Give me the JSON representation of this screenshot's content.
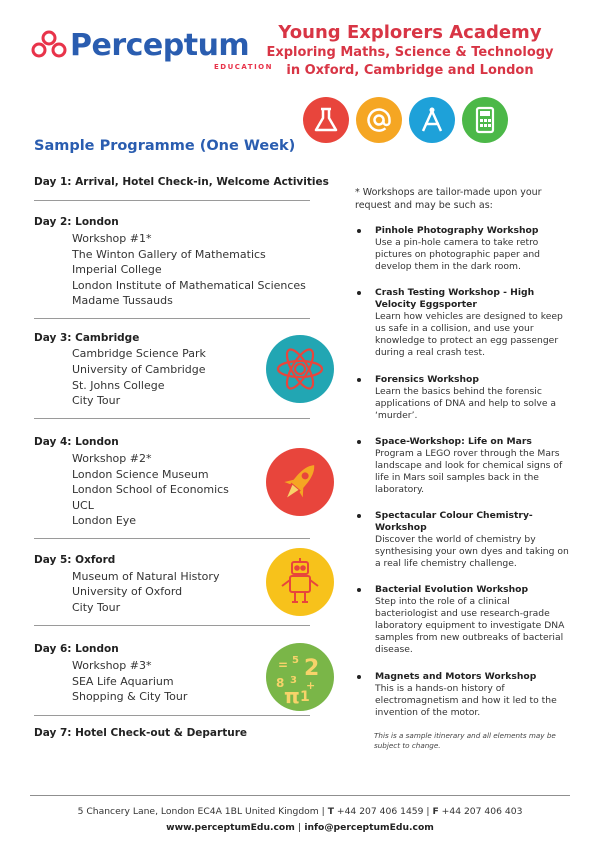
{
  "logo": {
    "brand": "Perceptum",
    "tagline": "EDUCATION"
  },
  "header": {
    "title": "Young Explorers Academy",
    "subtitle_line1": "Exploring Maths, Science & Technology",
    "subtitle_line2": "in Oxford, Cambridge and London"
  },
  "icons": {
    "top": [
      "flask-icon",
      "at-sign-icon",
      "compass-icon",
      "calculator-icon"
    ],
    "colors": {
      "red": "#e8453c",
      "orange": "#f5a623",
      "blue": "#1ea1d9",
      "green": "#4cb848",
      "teal": "#22a6b3",
      "yellow": "#f7c21b",
      "lime": "#7ab648"
    }
  },
  "programme": {
    "title": "Sample Programme (One Week)",
    "days": [
      {
        "heading": "Day 1: Arrival, Hotel Check-in, Welcome Activities",
        "items": []
      },
      {
        "heading": "Day 2: London",
        "items": [
          "Workshop #1*",
          "The Winton Gallery of Mathematics",
          "Imperial College",
          "London Institute of Mathematical Sciences",
          "Madame Tussauds"
        ]
      },
      {
        "heading": "Day 3: Cambridge",
        "items": [
          "Cambridge Science Park",
          "University of Cambridge",
          "St. Johns College",
          "City Tour"
        ]
      },
      {
        "heading": "Day 4: London",
        "items": [
          "Workshop #2*",
          "London Science Museum",
          "London School of Economics",
          "UCL",
          "London Eye"
        ]
      },
      {
        "heading": "Day 5: Oxford",
        "items": [
          "Museum of Natural History",
          "University of Oxford",
          "City Tour"
        ]
      },
      {
        "heading": "Day 6: London",
        "items": [
          "Workshop #3*",
          "SEA Life Aquarium",
          "Shopping & City Tour"
        ]
      },
      {
        "heading": "Day 7: Hotel Check-out & Departure",
        "items": []
      }
    ]
  },
  "workshops": {
    "intro": "* Workshops are tailor-made upon your request and may be such as:",
    "list": [
      {
        "title": "Pinhole Photography Workshop",
        "desc": "Use a pin-hole camera to take retro pictures on photographic paper and develop them in the dark room."
      },
      {
        "title": "Crash Testing Workshop - High Velocity Eggsporter",
        "desc": "Learn how vehicles are designed to keep us safe in a collision, and use your knowledge to protect an egg passenger during a real crash test."
      },
      {
        "title": "Forensics Workshop",
        "desc": "Learn the basics behind the forensic applications of DNA and help to solve a ‘murder’."
      },
      {
        "title": "Space-Workshop: Life on Mars",
        "desc": "Program a LEGO rover through the Mars landscape and look for chemical signs of life in Mars soil samples back in the laboratory."
      },
      {
        "title": "Spectacular Colour Chemistry- Workshop",
        "desc": "Discover the world of chemistry by synthesising your own dyes and taking on a real life chemistry challenge."
      },
      {
        "title": "Bacterial Evolution Workshop",
        "desc": "Step into the role of a clinical bacteriologist and use research-grade laboratory equipment to investigate DNA samples from new outbreaks of bacterial disease."
      },
      {
        "title": "Magnets and Motors Workshop",
        "desc": "This is a hands-on history of electromagnetism and how it led to the invention of the motor."
      }
    ],
    "note": "This is a sample itinerary and all elements may be subject to change."
  },
  "footer": {
    "address": "5 Chancery Lane, London EC4A 1BL United Kingdom",
    "sep": "|",
    "t_label": "T",
    "phone": "+44 207 406 1459",
    "f_label": "F",
    "fax": "+44 207 406 403",
    "web": "www.perceptumEdu.com",
    "email": "info@perceptumEdu.com"
  }
}
